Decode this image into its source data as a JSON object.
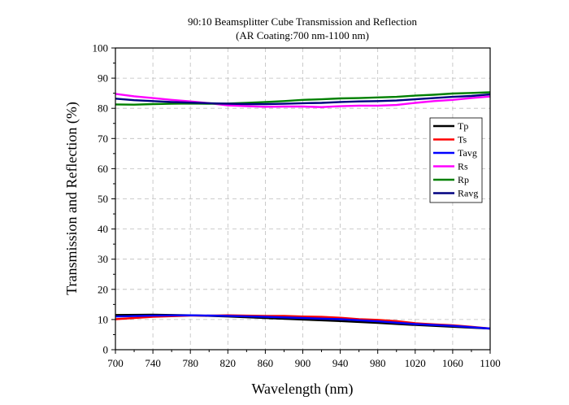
{
  "chart_data": {
    "type": "line",
    "title": "90:10 Beamsplitter Cube Transmission and Reflection",
    "subtitle": "(AR Coating:700 nm-1100 nm)",
    "xlabel": "Wavelength (nm)",
    "ylabel": "Transmission and Reflection (%)",
    "xlim": [
      700,
      1100
    ],
    "ylim": [
      0,
      100
    ],
    "xticks": [
      700,
      740,
      780,
      820,
      860,
      900,
      940,
      980,
      1020,
      1060,
      1100
    ],
    "yticks": [
      0,
      10,
      20,
      30,
      40,
      50,
      60,
      70,
      80,
      90,
      100
    ],
    "grid": "dashed",
    "legend_position": "right",
    "series": [
      {
        "name": "Tp",
        "color": "#000000",
        "x": [
          700,
          740,
          780,
          820,
          860,
          900,
          940,
          980,
          1020,
          1060,
          1100
        ],
        "y": [
          11.5,
          11.6,
          11.4,
          11.0,
          10.5,
          10.0,
          9.5,
          8.9,
          8.2,
          7.6,
          7.0
        ]
      },
      {
        "name": "Ts",
        "color": "#ff0000",
        "x": [
          700,
          720,
          740,
          760,
          780,
          800,
          820,
          840,
          860,
          880,
          900,
          920,
          940,
          960,
          980,
          1000,
          1020,
          1040,
          1060,
          1080,
          1100
        ],
        "y": [
          10.1,
          10.5,
          10.9,
          11.1,
          11.3,
          11.3,
          11.4,
          11.3,
          11.2,
          11.2,
          11.0,
          10.9,
          10.6,
          10.1,
          9.9,
          9.5,
          8.8,
          8.4,
          8.1,
          7.6,
          7.0
        ]
      },
      {
        "name": "Tavg",
        "color": "#0000ff",
        "x": [
          700,
          740,
          780,
          820,
          860,
          900,
          940,
          980,
          1020,
          1060,
          1100
        ],
        "y": [
          11.0,
          11.3,
          11.4,
          11.2,
          10.9,
          10.5,
          10.1,
          9.4,
          8.5,
          7.9,
          7.0
        ]
      },
      {
        "name": "Rs",
        "color": "#ff00ff",
        "x": [
          700,
          720,
          740,
          760,
          780,
          800,
          820,
          840,
          860,
          880,
          900,
          920,
          940,
          960,
          980,
          1000,
          1020,
          1040,
          1060,
          1080,
          1100
        ],
        "y": [
          84.8,
          84.0,
          83.4,
          82.8,
          82.3,
          81.7,
          81.0,
          80.7,
          80.5,
          80.6,
          80.6,
          80.4,
          80.7,
          80.9,
          80.9,
          81.1,
          81.8,
          82.4,
          82.8,
          83.4,
          83.9
        ]
      },
      {
        "name": "Rp",
        "color": "#008000",
        "x": [
          700,
          720,
          740,
          760,
          780,
          800,
          820,
          840,
          860,
          880,
          900,
          920,
          940,
          960,
          980,
          1000,
          1020,
          1040,
          1060,
          1080,
          1100
        ],
        "y": [
          81.3,
          81.2,
          81.4,
          81.5,
          81.6,
          81.5,
          81.6,
          81.8,
          82.1,
          82.4,
          82.8,
          83.0,
          83.3,
          83.4,
          83.6,
          83.8,
          84.2,
          84.5,
          84.9,
          85.1,
          85.3
        ]
      },
      {
        "name": "Ravg",
        "color": "#000080",
        "x": [
          700,
          720,
          740,
          760,
          780,
          800,
          820,
          840,
          860,
          880,
          900,
          920,
          940,
          960,
          980,
          1000,
          1020,
          1040,
          1060,
          1080,
          1100
        ],
        "y": [
          83.2,
          82.7,
          82.4,
          82.1,
          81.9,
          81.7,
          81.5,
          81.4,
          81.4,
          81.5,
          81.7,
          81.8,
          82.1,
          82.3,
          82.4,
          82.6,
          83.0,
          83.4,
          83.8,
          84.1,
          84.6
        ]
      }
    ]
  }
}
